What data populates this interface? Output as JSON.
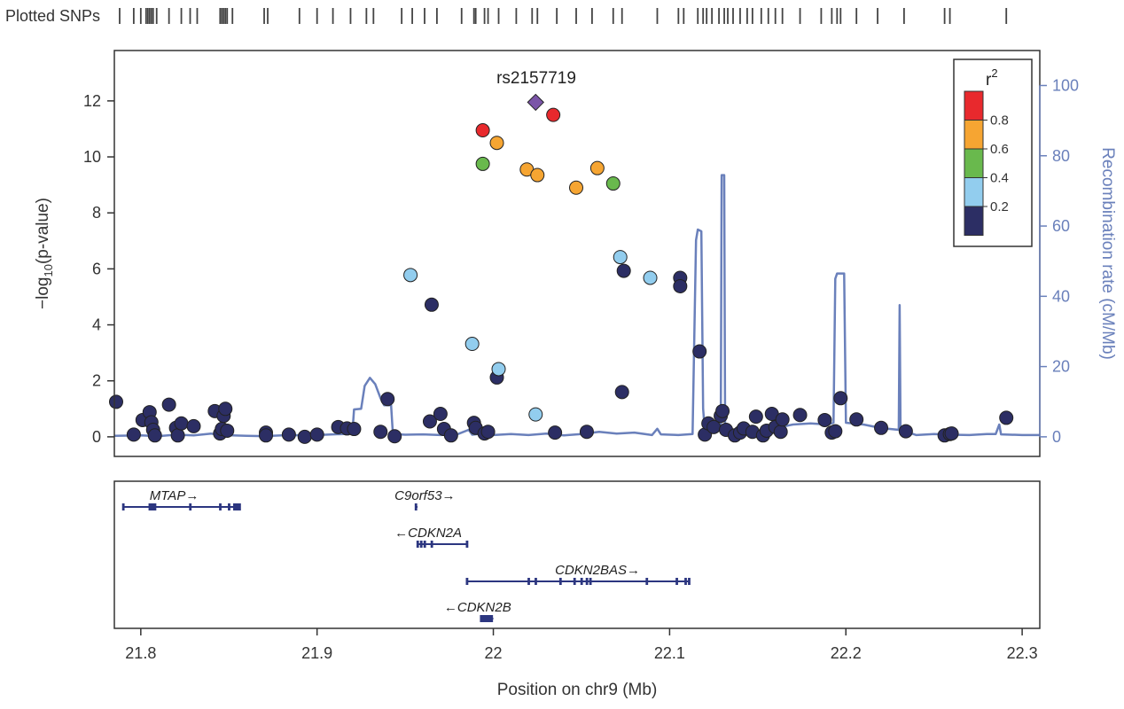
{
  "chart_data": {
    "type": "scatter",
    "title": "",
    "plotted_snps_label": "Plotted SNPs",
    "xlabel": "Position on chr9 (Mb)",
    "ylabel_main": "−log",
    "ylabel_sub": "10",
    "ylabel_tail": "(p-value)",
    "y2label": "Recombination rate (cM/Mb)",
    "xlim": [
      21.785,
      22.31
    ],
    "ylim": [
      -0.7,
      13.8
    ],
    "y2lim": [
      0,
      100
    ],
    "xticks": [
      21.8,
      21.9,
      22.0,
      22.1,
      22.2,
      22.3
    ],
    "xtick_labels": [
      "21.8",
      "21.9",
      "22",
      "22.1",
      "22.2",
      "22.3"
    ],
    "yticks": [
      0,
      2,
      4,
      6,
      8,
      10,
      12
    ],
    "ytick_labels": [
      "0",
      "2",
      "4",
      "6",
      "8",
      "10",
      "12"
    ],
    "y2ticks": [
      0,
      20,
      40,
      60,
      80,
      100
    ],
    "y2tick_labels": [
      "0",
      "20",
      "40",
      "60",
      "80",
      "100"
    ],
    "lead_snp": {
      "name": "rs2157719",
      "x": 22.024,
      "y": 11.95,
      "color": "#7b55a8"
    },
    "colors": {
      "r2_0.8_1": "#e8292d",
      "r2_0.6_0.8": "#f6a532",
      "r2_0.4_0.6": "#69b94d",
      "r2_0.2_0.4": "#92cdee",
      "r2_0_0.2": "#2c2e64",
      "recombination": "#6a80bb",
      "gene": "#2c3680"
    },
    "legend": {
      "title": "r",
      "title_sup": "2",
      "placement": "top-right",
      "bins": [
        {
          "color": "#e8292d"
        },
        {
          "color": "#f6a532"
        },
        {
          "color": "#69b94d"
        },
        {
          "color": "#92cdee"
        },
        {
          "color": "#2c2e64"
        }
      ],
      "labels": [
        "0.8",
        "0.6",
        "0.4",
        "0.2"
      ]
    },
    "series": [
      {
        "name": "0.8-1",
        "color": "#e8292d",
        "points": [
          [
            21.994,
            10.95
          ],
          [
            22.034,
            11.5
          ]
        ]
      },
      {
        "name": "0.6-0.8",
        "color": "#f6a532",
        "points": [
          [
            22.002,
            10.5
          ],
          [
            22.019,
            9.55
          ],
          [
            22.025,
            9.35
          ],
          [
            22.047,
            8.9
          ],
          [
            22.059,
            9.6
          ]
        ]
      },
      {
        "name": "0.4-0.6",
        "color": "#69b94d",
        "points": [
          [
            21.994,
            9.75
          ],
          [
            22.068,
            9.05
          ]
        ]
      },
      {
        "name": "0.2-0.4",
        "color": "#92cdee",
        "points": [
          [
            21.953,
            5.78
          ],
          [
            21.988,
            3.32
          ],
          [
            22.003,
            2.42
          ],
          [
            22.024,
            0.8
          ],
          [
            22.072,
            6.42
          ],
          [
            22.089,
            5.68
          ]
        ]
      },
      {
        "name": "0-0.2",
        "color": "#2c2e64",
        "points": [
          [
            21.786,
            1.25
          ],
          [
            21.796,
            0.08
          ],
          [
            21.801,
            0.6
          ],
          [
            21.805,
            0.88
          ],
          [
            21.806,
            0.52
          ],
          [
            21.807,
            0.25
          ],
          [
            21.808,
            0.05
          ],
          [
            21.816,
            1.15
          ],
          [
            21.82,
            0.32
          ],
          [
            21.821,
            0.05
          ],
          [
            21.823,
            0.48
          ],
          [
            21.83,
            0.38
          ],
          [
            21.842,
            0.92
          ],
          [
            21.845,
            0.12
          ],
          [
            21.846,
            0.28
          ],
          [
            21.847,
            0.75
          ],
          [
            21.848,
            1.0
          ],
          [
            21.849,
            0.22
          ],
          [
            21.871,
            0.15
          ],
          [
            21.871,
            0.05
          ],
          [
            21.884,
            0.08
          ],
          [
            21.893,
            0.0
          ],
          [
            21.9,
            0.08
          ],
          [
            21.912,
            0.35
          ],
          [
            21.917,
            0.3
          ],
          [
            21.921,
            0.28
          ],
          [
            21.936,
            0.18
          ],
          [
            21.94,
            1.35
          ],
          [
            21.944,
            0.02
          ],
          [
            21.964,
            0.55
          ],
          [
            21.965,
            4.72
          ],
          [
            21.97,
            0.82
          ],
          [
            21.972,
            0.28
          ],
          [
            21.976,
            0.05
          ],
          [
            21.989,
            0.5
          ],
          [
            21.99,
            0.32
          ],
          [
            21.995,
            0.12
          ],
          [
            21.997,
            0.18
          ],
          [
            22.002,
            2.12
          ],
          [
            22.035,
            0.15
          ],
          [
            22.053,
            0.18
          ],
          [
            22.073,
            1.6
          ],
          [
            22.074,
            5.93
          ],
          [
            22.106,
            5.68
          ],
          [
            22.106,
            5.38
          ],
          [
            22.117,
            3.05
          ],
          [
            22.12,
            0.08
          ],
          [
            22.122,
            0.48
          ],
          [
            22.125,
            0.35
          ],
          [
            22.129,
            0.75
          ],
          [
            22.13,
            0.92
          ],
          [
            22.132,
            0.25
          ],
          [
            22.137,
            0.05
          ],
          [
            22.14,
            0.15
          ],
          [
            22.142,
            0.3
          ],
          [
            22.147,
            0.18
          ],
          [
            22.149,
            0.72
          ],
          [
            22.153,
            0.05
          ],
          [
            22.155,
            0.22
          ],
          [
            22.158,
            0.82
          ],
          [
            22.16,
            0.35
          ],
          [
            22.163,
            0.18
          ],
          [
            22.164,
            0.62
          ],
          [
            22.174,
            0.78
          ],
          [
            22.188,
            0.6
          ],
          [
            22.192,
            0.15
          ],
          [
            22.194,
            0.2
          ],
          [
            22.197,
            1.38
          ],
          [
            22.206,
            0.62
          ],
          [
            22.22,
            0.32
          ],
          [
            22.234,
            0.2
          ],
          [
            22.256,
            0.05
          ],
          [
            22.259,
            0.1
          ],
          [
            22.26,
            0.12
          ],
          [
            22.291,
            0.68
          ]
        ]
      }
    ],
    "recombination": {
      "name": "Recombination rate",
      "points": [
        [
          21.785,
          0.3
        ],
        [
          21.8,
          0.4
        ],
        [
          21.81,
          0.2
        ],
        [
          21.82,
          0.6
        ],
        [
          21.83,
          0.4
        ],
        [
          21.84,
          0.9
        ],
        [
          21.845,
          0.5
        ],
        [
          21.86,
          0.3
        ],
        [
          21.87,
          0.2
        ],
        [
          21.88,
          0.4
        ],
        [
          21.9,
          0.5
        ],
        [
          21.915,
          0.8
        ],
        [
          21.92,
          1.0
        ],
        [
          21.921,
          7.8
        ],
        [
          21.925,
          8.0
        ],
        [
          21.927,
          14.5
        ],
        [
          21.93,
          16.8
        ],
        [
          21.933,
          15.0
        ],
        [
          21.936,
          11.0
        ],
        [
          21.938,
          9.0
        ],
        [
          21.942,
          9.0
        ],
        [
          21.943,
          0.8
        ],
        [
          21.95,
          0.6
        ],
        [
          21.96,
          0.7
        ],
        [
          21.97,
          0.5
        ],
        [
          21.98,
          0.8
        ],
        [
          21.986,
          2.0
        ],
        [
          21.988,
          0.6
        ],
        [
          21.995,
          1.0
        ],
        [
          22.0,
          0.5
        ],
        [
          22.01,
          0.8
        ],
        [
          22.02,
          0.5
        ],
        [
          22.03,
          0.9
        ],
        [
          22.04,
          0.4
        ],
        [
          22.05,
          0.8
        ],
        [
          22.06,
          1.4
        ],
        [
          22.07,
          0.9
        ],
        [
          22.08,
          1.2
        ],
        [
          22.09,
          0.5
        ],
        [
          22.093,
          2.3
        ],
        [
          22.095,
          0.7
        ],
        [
          22.105,
          0.5
        ],
        [
          22.113,
          0.8
        ],
        [
          22.115,
          56
        ],
        [
          22.116,
          59
        ],
        [
          22.118,
          58.5
        ],
        [
          22.119,
          8.0
        ],
        [
          22.12,
          1.5
        ],
        [
          22.125,
          1.2
        ],
        [
          22.129,
          2.0
        ],
        [
          22.1295,
          74.5
        ],
        [
          22.131,
          74.5
        ],
        [
          22.1315,
          3.0
        ],
        [
          22.14,
          1.2
        ],
        [
          22.15,
          1.0
        ],
        [
          22.16,
          2.5
        ],
        [
          22.17,
          3.5
        ],
        [
          22.18,
          3.8
        ],
        [
          22.19,
          3.5
        ],
        [
          22.193,
          4.0
        ],
        [
          22.194,
          45
        ],
        [
          22.195,
          46.5
        ],
        [
          22.199,
          46.5
        ],
        [
          22.2,
          4.0
        ],
        [
          22.21,
          3.5
        ],
        [
          22.22,
          2.5
        ],
        [
          22.23,
          2.0
        ],
        [
          22.2305,
          37.5
        ],
        [
          22.231,
          2.0
        ],
        [
          22.24,
          0.5
        ],
        [
          22.25,
          0.8
        ],
        [
          22.26,
          0.6
        ],
        [
          22.27,
          0.5
        ],
        [
          22.28,
          0.8
        ],
        [
          22.285,
          0.8
        ],
        [
          22.287,
          3.5
        ],
        [
          22.288,
          0.7
        ],
        [
          22.3,
          0.5
        ],
        [
          22.31,
          0.5
        ]
      ]
    },
    "plotted_snps": [
      21.788,
      21.796,
      21.8,
      21.803,
      21.804,
      21.805,
      21.806,
      21.807,
      21.809,
      21.816,
      21.823,
      21.828,
      21.832,
      21.845,
      21.846,
      21.847,
      21.848,
      21.849,
      21.852,
      21.87,
      21.872,
      21.89,
      21.9,
      21.909,
      21.919,
      21.928,
      21.932,
      21.948,
      21.954,
      21.961,
      21.968,
      21.982,
      21.989,
      21.99,
      21.995,
      21.997,
      22.003,
      22.013,
      22.022,
      22.025,
      22.036,
      22.047,
      22.056,
      22.068,
      22.073,
      22.093,
      22.105,
      22.108,
      22.116,
      22.119,
      22.121,
      22.124,
      22.128,
      22.131,
      22.133,
      22.136,
      22.14,
      22.144,
      22.147,
      22.152,
      22.156,
      22.16,
      22.164,
      22.174,
      22.186,
      22.192,
      22.195,
      22.197,
      22.206,
      22.218,
      22.233,
      22.256,
      22.259,
      22.291
    ],
    "genes": [
      {
        "name": "MTAP",
        "label": "MTAP→",
        "label_x": 21.805,
        "row": 0,
        "start": 21.79,
        "end": 21.856,
        "exons": [
          21.79,
          21.805,
          21.806,
          21.807,
          21.808,
          21.828,
          21.845,
          21.85,
          21.853,
          21.854,
          21.855,
          21.856
        ]
      },
      {
        "name": "C9orf53",
        "label": "C9orf53→",
        "label_x": 21.944,
        "row": 0,
        "start": 21.956,
        "end": 21.957,
        "exons": [
          21.956
        ]
      },
      {
        "name": "CDKN2A",
        "label": "←CDKN2A",
        "label_x": 21.944,
        "row": 1,
        "start": 21.957,
        "end": 21.985,
        "exons": [
          21.957,
          21.959,
          21.961,
          21.965,
          21.985
        ]
      },
      {
        "name": "CDKN2BAS",
        "label": "CDKN2BAS→",
        "label_x": 22.035,
        "row": 2,
        "start": 21.985,
        "end": 22.111,
        "exons": [
          21.985,
          22.02,
          22.024,
          22.038,
          22.046,
          22.05,
          22.053,
          22.055,
          22.087,
          22.104,
          22.109,
          22.111
        ]
      },
      {
        "name": "CDKN2B",
        "label": "←CDKN2B",
        "label_x": 21.972,
        "row": 3,
        "start": 21.993,
        "end": 22.0,
        "exons": [
          21.993,
          21.994,
          21.995,
          21.996,
          21.997,
          21.998,
          21.999
        ]
      }
    ]
  }
}
